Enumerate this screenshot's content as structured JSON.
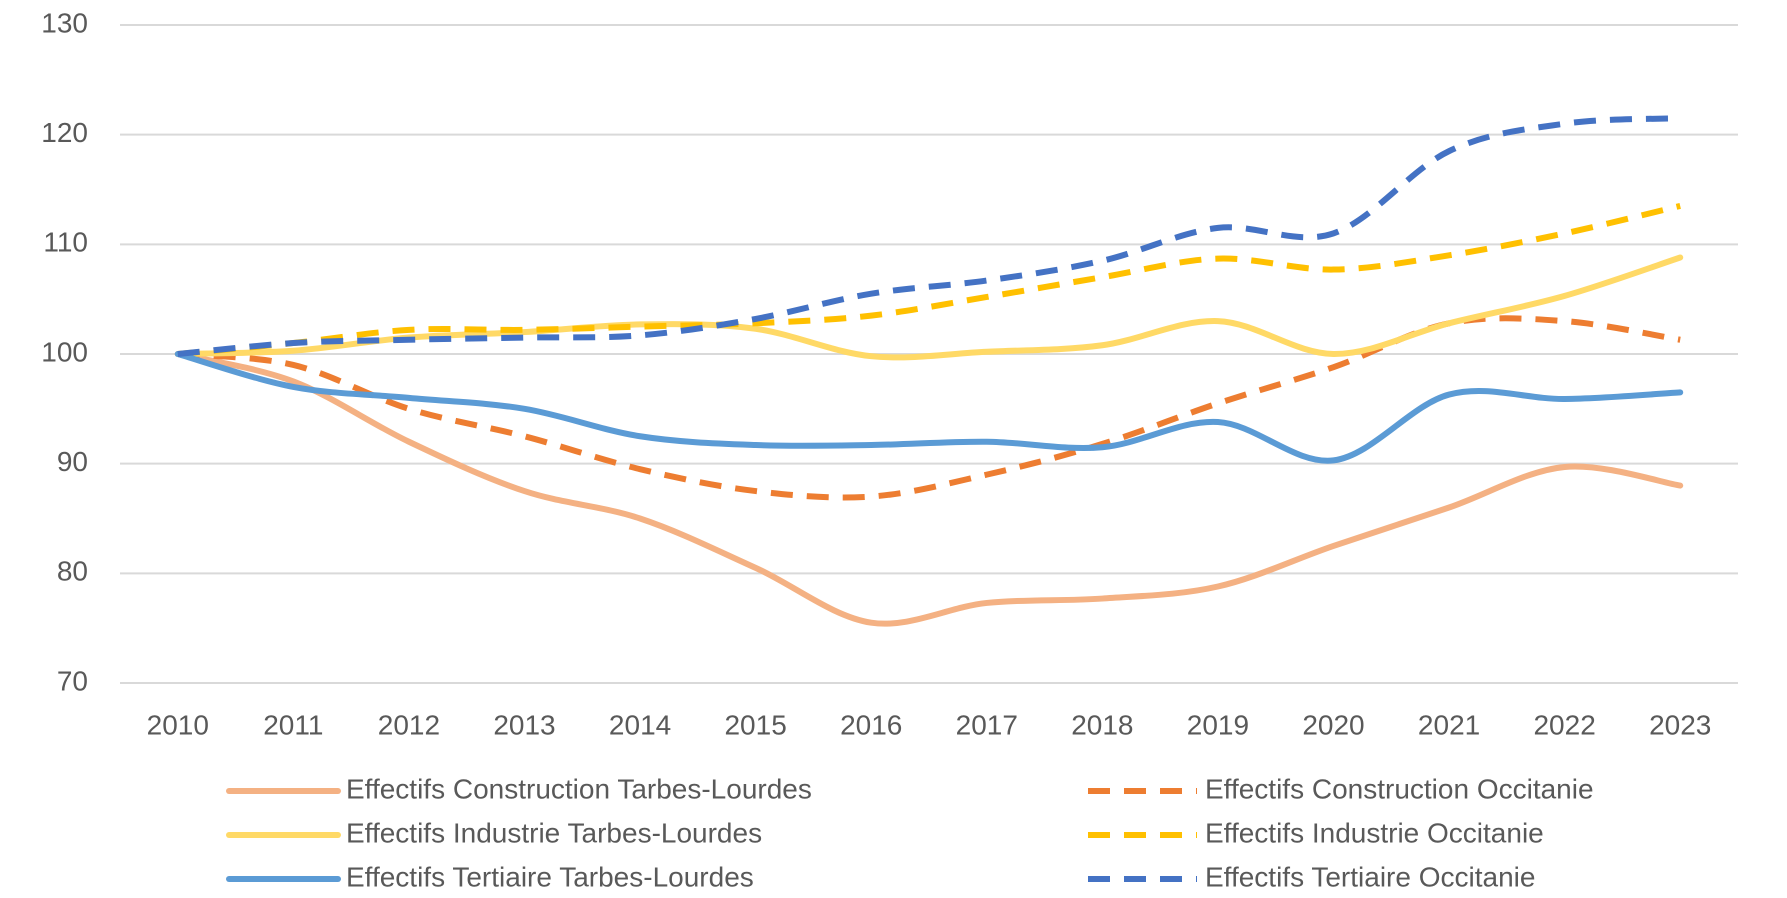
{
  "chart_data": {
    "type": "line",
    "categories": [
      "2010",
      "2011",
      "2012",
      "2013",
      "2014",
      "2015",
      "2016",
      "2017",
      "2018",
      "2019",
      "2020",
      "2021",
      "2022",
      "2023"
    ],
    "ylim": [
      70,
      130
    ],
    "yticks": [
      70,
      80,
      90,
      100,
      110,
      120,
      130
    ],
    "grid": true,
    "legend": "bottom",
    "smooth": true,
    "series": [
      {
        "name": "Effectifs Construction Tarbes-Lourdes",
        "color": "#f4b183",
        "style": "solid",
        "values": [
          100,
          97.5,
          92,
          87.5,
          85,
          80.5,
          75.5,
          77.3,
          77.7,
          78.8,
          82.5,
          86,
          89.7,
          88
        ]
      },
      {
        "name": "Effectifs Construction Occitanie",
        "color": "#ed7d31",
        "style": "dashed",
        "values": [
          100,
          99,
          95,
          92.5,
          89.5,
          87.5,
          87,
          89,
          91.8,
          95.5,
          98.8,
          102.8,
          103,
          101.3
        ]
      },
      {
        "name": "Effectifs Industrie Tarbes-Lourdes",
        "color": "#ffd966",
        "style": "solid",
        "values": [
          100,
          100.3,
          101.5,
          102,
          102.7,
          102.3,
          99.8,
          100.2,
          100.8,
          103,
          100,
          102.8,
          105.3,
          108.8
        ]
      },
      {
        "name": "Effectifs Industrie Occitanie",
        "color": "#ffc000",
        "style": "dashed",
        "values": [
          100,
          101,
          102.2,
          102.2,
          102.5,
          102.8,
          103.5,
          105.2,
          107,
          108.7,
          107.7,
          109,
          111,
          113.5
        ]
      },
      {
        "name": "Effectifs Tertiaire Tarbes-Lourdes",
        "color": "#5b9bd5",
        "style": "solid",
        "values": [
          100,
          97,
          96,
          95,
          92.5,
          91.7,
          91.7,
          92,
          91.5,
          93.8,
          90.3,
          96.3,
          95.9,
          96.5
        ]
      },
      {
        "name": "Effectifs Tertiaire Occitanie",
        "color": "#4472c4",
        "style": "dashed",
        "values": [
          100,
          101,
          101.3,
          101.5,
          101.7,
          103.2,
          105.5,
          106.7,
          108.5,
          111.5,
          111,
          118.5,
          121,
          121.5
        ]
      }
    ]
  }
}
